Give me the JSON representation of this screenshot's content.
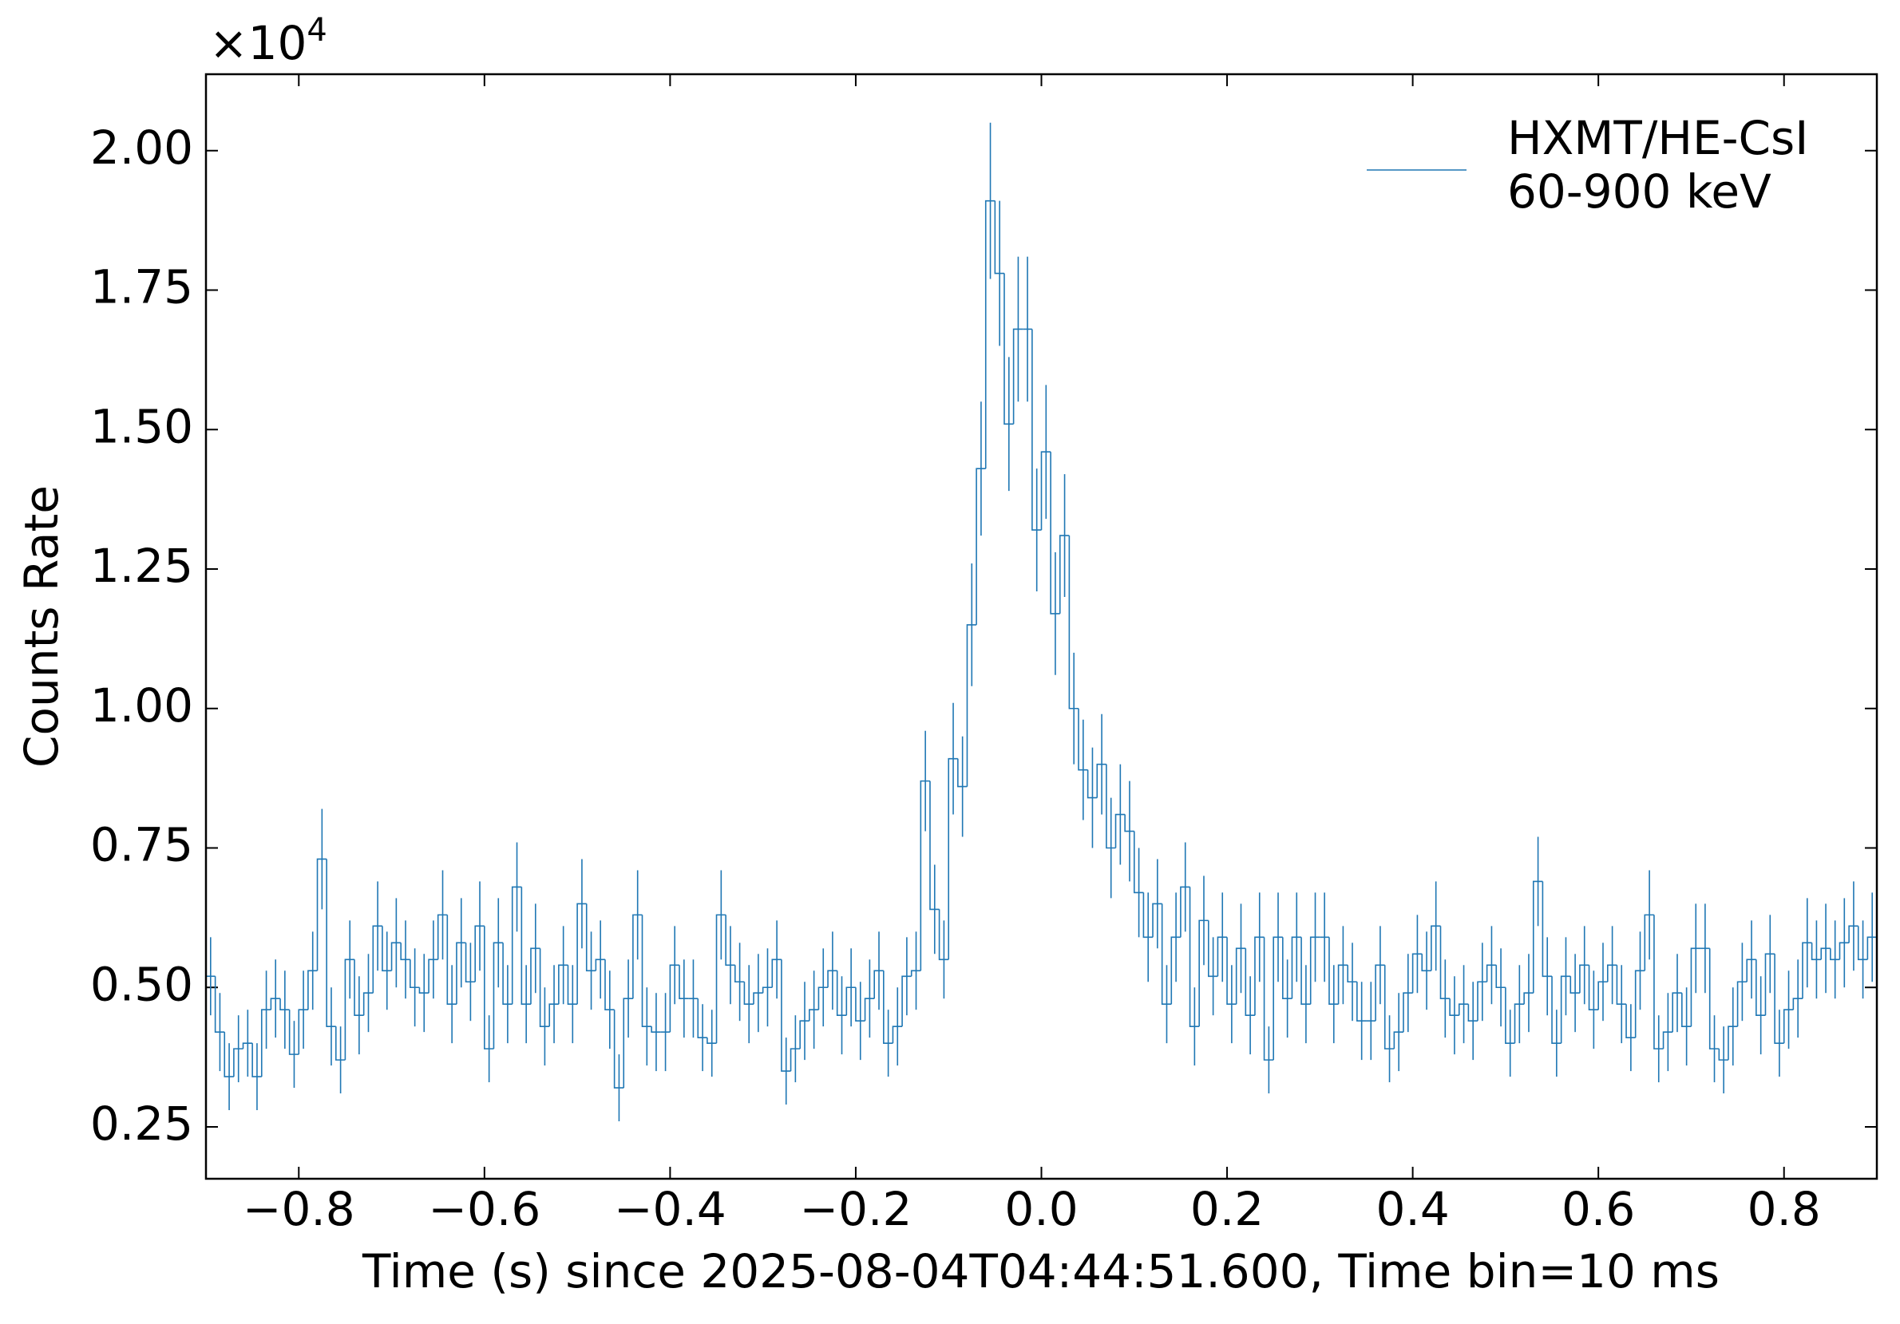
{
  "chart_data": {
    "type": "histogram",
    "xlabel": "Time (s) since 2025-08-04T04:44:51.600, Time bin=10 ms",
    "ylabel": "Counts Rate",
    "y_offset_text": {
      "base": "×10",
      "exponent": "4"
    },
    "xlim": [
      -0.9,
      0.9
    ],
    "ylim": [
      0.157,
      2.137
    ],
    "xticks": [
      {
        "value": -0.8,
        "label": "−0.8"
      },
      {
        "value": -0.6,
        "label": "−0.6"
      },
      {
        "value": -0.4,
        "label": "−0.4"
      },
      {
        "value": -0.2,
        "label": "−0.2"
      },
      {
        "value": 0,
        "label": "0.0"
      },
      0.2,
      0.4,
      0.6,
      0.8
    ],
    "yticks": [
      0.25,
      {
        "value": 0.5,
        "label": "0.50"
      },
      0.75,
      {
        "value": 1,
        "label": "1.00"
      },
      1.25,
      {
        "value": 1.5,
        "label": "1.50"
      },
      1.75,
      {
        "value": 2,
        "label": "2.00"
      }
    ],
    "legend": "upper right",
    "bins": [
      -0.9,
      -0.89,
      -0.88,
      -0.87,
      -0.86,
      -0.85,
      -0.84,
      -0.83,
      -0.82,
      -0.81,
      -0.8,
      -0.79,
      -0.78,
      -0.77,
      -0.76,
      -0.75,
      -0.74,
      -0.73,
      -0.72,
      -0.71,
      -0.7,
      -0.69,
      -0.68,
      -0.67,
      -0.66,
      -0.65,
      -0.64,
      -0.63,
      -0.62,
      -0.61,
      -0.6,
      -0.59,
      -0.58,
      -0.57,
      -0.56,
      -0.55,
      -0.54,
      -0.53,
      -0.52,
      -0.51,
      -0.5,
      -0.49,
      -0.48,
      -0.47,
      -0.46,
      -0.45,
      -0.44,
      -0.43,
      -0.42,
      -0.41,
      -0.4,
      -0.39,
      -0.38,
      -0.37,
      -0.36,
      -0.35,
      -0.34,
      -0.33,
      -0.32,
      -0.31,
      -0.3,
      -0.29,
      -0.28,
      -0.27,
      -0.26,
      -0.25,
      -0.24,
      -0.23,
      -0.22,
      -0.21,
      -0.2,
      -0.19,
      -0.18,
      -0.17,
      -0.16,
      -0.15,
      -0.14,
      -0.13,
      -0.12,
      -0.11,
      -0.1,
      -0.09,
      -0.08,
      -0.07,
      -0.06,
      -0.05,
      -0.04,
      -0.03,
      -0.02,
      -0.01,
      0,
      0.01,
      0.02,
      0.03,
      0.04,
      0.05,
      0.06,
      0.07,
      0.08,
      0.09,
      0.1,
      0.11,
      0.12,
      0.13,
      0.14,
      0.15,
      0.16,
      0.17,
      0.18,
      0.19,
      0.2,
      0.21,
      0.22,
      0.23,
      0.24,
      0.25,
      0.26,
      0.27,
      0.28,
      0.29,
      0.3,
      0.31,
      0.32,
      0.33,
      0.34,
      0.35,
      0.36,
      0.37,
      0.38,
      0.39,
      0.4,
      0.41,
      0.42,
      0.43,
      0.44,
      0.45,
      0.46,
      0.47,
      0.48,
      0.49,
      0.5,
      0.51,
      0.52,
      0.53,
      0.54,
      0.55,
      0.56,
      0.57,
      0.58,
      0.59,
      0.6,
      0.61,
      0.62,
      0.63,
      0.64,
      0.65,
      0.66,
      0.67,
      0.68,
      0.69,
      0.7,
      0.71,
      0.72,
      0.73,
      0.74,
      0.75,
      0.76,
      0.77,
      0.78,
      0.79,
      0.8,
      0.81,
      0.82,
      0.83,
      0.84,
      0.85,
      0.86,
      0.87,
      0.88,
      0.89,
      0.9
    ],
    "series": [
      {
        "name": "HXMT/HE-CsI",
        "energy_band": "60-900 keV",
        "color": "#1f77b4",
        "values": [
          0.52,
          0.42,
          0.34,
          0.39,
          0.4,
          0.34,
          0.46,
          0.48,
          0.46,
          0.38,
          0.46,
          0.53,
          0.73,
          0.43,
          0.37,
          0.55,
          0.45,
          0.49,
          0.61,
          0.53,
          0.58,
          0.55,
          0.5,
          0.49,
          0.55,
          0.63,
          0.47,
          0.58,
          0.51,
          0.61,
          0.39,
          0.58,
          0.47,
          0.68,
          0.47,
          0.57,
          0.43,
          0.47,
          0.54,
          0.47,
          0.65,
          0.53,
          0.55,
          0.46,
          0.32,
          0.48,
          0.63,
          0.43,
          0.42,
          0.42,
          0.54,
          0.48,
          0.48,
          0.41,
          0.4,
          0.63,
          0.54,
          0.51,
          0.47,
          0.49,
          0.5,
          0.55,
          0.35,
          0.39,
          0.44,
          0.46,
          0.5,
          0.53,
          0.45,
          0.5,
          0.44,
          0.48,
          0.53,
          0.4,
          0.43,
          0.52,
          0.53,
          0.87,
          0.64,
          0.55,
          0.91,
          0.86,
          1.15,
          1.43,
          1.91,
          1.78,
          1.51,
          1.68,
          1.68,
          1.32,
          1.46,
          1.17,
          1.31,
          1.0,
          0.89,
          0.84,
          0.9,
          0.75,
          0.81,
          0.78,
          0.67,
          0.59,
          0.65,
          0.47,
          0.59,
          0.68,
          0.43,
          0.62,
          0.52,
          0.59,
          0.47,
          0.57,
          0.45,
          0.59,
          0.37,
          0.59,
          0.48,
          0.59,
          0.47,
          0.59,
          0.59,
          0.47,
          0.54,
          0.51,
          0.44,
          0.44,
          0.54,
          0.39,
          0.42,
          0.49,
          0.56,
          0.53,
          0.61,
          0.48,
          0.45,
          0.47,
          0.44,
          0.51,
          0.54,
          0.5,
          0.4,
          0.47,
          0.49,
          0.69,
          0.52,
          0.4,
          0.52,
          0.49,
          0.54,
          0.46,
          0.51,
          0.54,
          0.47,
          0.41,
          0.53,
          0.63,
          0.39,
          0.42,
          0.49,
          0.43,
          0.57,
          0.57,
          0.39,
          0.37,
          0.43,
          0.51,
          0.55,
          0.45,
          0.56,
          0.4,
          0.46,
          0.48,
          0.58,
          0.55,
          0.57,
          0.55,
          0.58,
          0.61,
          0.55,
          0.59
        ],
        "errors": [
          0.07,
          0.07,
          0.06,
          0.06,
          0.06,
          0.06,
          0.07,
          0.07,
          0.07,
          0.06,
          0.07,
          0.07,
          0.09,
          0.07,
          0.06,
          0.07,
          0.07,
          0.07,
          0.08,
          0.07,
          0.08,
          0.07,
          0.07,
          0.07,
          0.07,
          0.08,
          0.07,
          0.08,
          0.07,
          0.08,
          0.06,
          0.08,
          0.07,
          0.08,
          0.07,
          0.08,
          0.07,
          0.07,
          0.07,
          0.07,
          0.08,
          0.07,
          0.07,
          0.07,
          0.06,
          0.07,
          0.08,
          0.07,
          0.07,
          0.07,
          0.07,
          0.07,
          0.07,
          0.06,
          0.06,
          0.08,
          0.07,
          0.07,
          0.07,
          0.07,
          0.07,
          0.07,
          0.06,
          0.06,
          0.07,
          0.07,
          0.07,
          0.07,
          0.07,
          0.07,
          0.07,
          0.07,
          0.07,
          0.06,
          0.07,
          0.07,
          0.07,
          0.09,
          0.08,
          0.07,
          0.1,
          0.09,
          0.11,
          0.12,
          0.14,
          0.13,
          0.12,
          0.13,
          0.13,
          0.11,
          0.12,
          0.11,
          0.11,
          0.1,
          0.09,
          0.09,
          0.09,
          0.09,
          0.09,
          0.09,
          0.08,
          0.08,
          0.08,
          0.07,
          0.08,
          0.08,
          0.07,
          0.08,
          0.07,
          0.08,
          0.07,
          0.08,
          0.07,
          0.08,
          0.06,
          0.08,
          0.07,
          0.08,
          0.07,
          0.08,
          0.08,
          0.07,
          0.07,
          0.07,
          0.07,
          0.07,
          0.07,
          0.06,
          0.07,
          0.07,
          0.07,
          0.07,
          0.08,
          0.07,
          0.07,
          0.07,
          0.07,
          0.07,
          0.07,
          0.07,
          0.06,
          0.07,
          0.07,
          0.08,
          0.07,
          0.06,
          0.07,
          0.07,
          0.07,
          0.07,
          0.07,
          0.07,
          0.07,
          0.06,
          0.07,
          0.08,
          0.06,
          0.07,
          0.07,
          0.07,
          0.08,
          0.08,
          0.06,
          0.06,
          0.07,
          0.07,
          0.07,
          0.07,
          0.07,
          0.06,
          0.07,
          0.07,
          0.08,
          0.07,
          0.08,
          0.07,
          0.08,
          0.08,
          0.07,
          0.08
        ]
      }
    ]
  }
}
